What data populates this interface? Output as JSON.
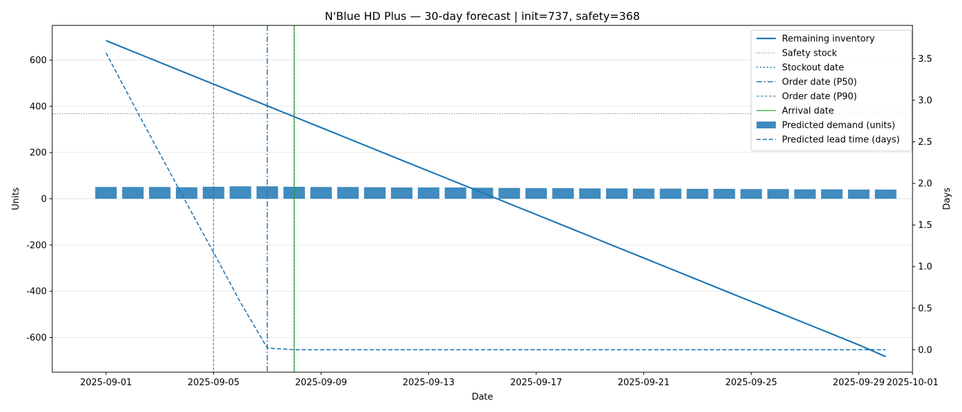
{
  "chart_data": {
    "type": "bar",
    "title": "N'Blue HD Plus — 30-day forecast | init=737, safety=368",
    "xlabel": "Date",
    "ylabel": "Units",
    "y2label": "Days",
    "x_range": [
      "2025-08-30",
      "2025-10-01"
    ],
    "ylim": [
      -750,
      750
    ],
    "y2lim": [
      -0.27,
      3.9
    ],
    "x_ticks": [
      "2025-09-01",
      "2025-09-05",
      "2025-09-09",
      "2025-09-13",
      "2025-09-17",
      "2025-09-21",
      "2025-09-25",
      "2025-09-29",
      "2025-10-01"
    ],
    "x_tick_labels": [
      "2025-09-01",
      "2025-09-05",
      "2025-09-09",
      "2025-09-13",
      "2025-09-17",
      "2025-09-21",
      "2025-09-25",
      "2025-09-29",
      "2025-10-01"
    ],
    "y_ticks": [
      -600,
      -400,
      -200,
      0,
      200,
      400,
      600
    ],
    "y_tick_labels": [
      "-600",
      "-400",
      "-200",
      "0",
      "200",
      "400",
      "600"
    ],
    "y2_ticks": [
      0,
      0.5,
      1,
      1.5,
      2,
      2.5,
      3,
      3.5
    ],
    "y2_tick_labels": [
      "0.0",
      "0.5",
      "1.0",
      "1.5",
      "2.0",
      "2.5",
      "3.0",
      "3.5"
    ],
    "grid": "horizontal",
    "legend_position": "top-right",
    "dates": [
      "2025-09-01",
      "2025-09-02",
      "2025-09-03",
      "2025-09-04",
      "2025-09-05",
      "2025-09-06",
      "2025-09-07",
      "2025-09-08",
      "2025-09-09",
      "2025-09-10",
      "2025-09-11",
      "2025-09-12",
      "2025-09-13",
      "2025-09-14",
      "2025-09-15",
      "2025-09-16",
      "2025-09-17",
      "2025-09-18",
      "2025-09-19",
      "2025-09-20",
      "2025-09-21",
      "2025-09-22",
      "2025-09-23",
      "2025-09-24",
      "2025-09-25",
      "2025-09-26",
      "2025-09-27",
      "2025-09-28",
      "2025-09-29",
      "2025-09-30"
    ],
    "series": [
      {
        "name": "Predicted demand (units)",
        "type": "bar",
        "axis": "left",
        "color": "#1f77b4",
        "values": [
          51,
          51,
          51,
          50,
          52,
          54,
          54,
          52,
          51,
          51,
          50,
          49,
          49,
          49,
          48,
          47,
          46,
          46,
          45,
          45,
          44,
          44,
          43,
          43,
          42,
          42,
          41,
          41,
          40,
          40
        ]
      },
      {
        "name": "Remaining inventory",
        "type": "line",
        "axis": "left",
        "color": "#1f77b4",
        "values": [
          684,
          637,
          590,
          543,
          496,
          449,
          402,
          355,
          308,
          261,
          214,
          167,
          120,
          73,
          26,
          -21,
          -68,
          -115,
          -162,
          -209,
          -256,
          -303,
          -350,
          -397,
          -444,
          -491,
          -538,
          -585,
          -632,
          -683
        ]
      },
      {
        "name": "Predicted lead time (days)",
        "type": "line",
        "axis": "right",
        "color": "#1f77b4",
        "values": [
          3.57,
          2.96,
          2.36,
          1.76,
          1.17,
          0.57,
          0.02,
          0,
          0,
          0,
          0,
          0,
          0,
          0,
          0,
          0,
          0,
          0,
          0,
          0,
          0,
          0,
          0,
          0,
          0,
          0,
          0,
          0,
          0,
          0
        ],
        "x_start": "2025-09-04"
      }
    ],
    "reference_lines": [
      {
        "name": "Safety stock",
        "orientation": "horizontal",
        "value": 368,
        "color": "#7f7f7f"
      },
      {
        "name": "Stockout date",
        "orientation": "vertical",
        "value": "2025-09-08",
        "color": "#1f77b4"
      },
      {
        "name": "Order date (P50)",
        "orientation": "vertical",
        "value": "2025-09-07",
        "color": "#1f77b4"
      },
      {
        "name": "Order date (P90)",
        "orientation": "vertical",
        "value": "2025-09-05",
        "color": "#1f77b4"
      },
      {
        "name": "Arrival date",
        "orientation": "vertical",
        "value": "2025-09-08",
        "color": "#2ca02c"
      }
    ],
    "legend": [
      "Remaining inventory",
      "Safety stock",
      "Stockout date",
      "Order date (P50)",
      "Order date (P90)",
      "Arrival date",
      "Predicted demand (units)",
      "Predicted lead time (days)"
    ]
  }
}
